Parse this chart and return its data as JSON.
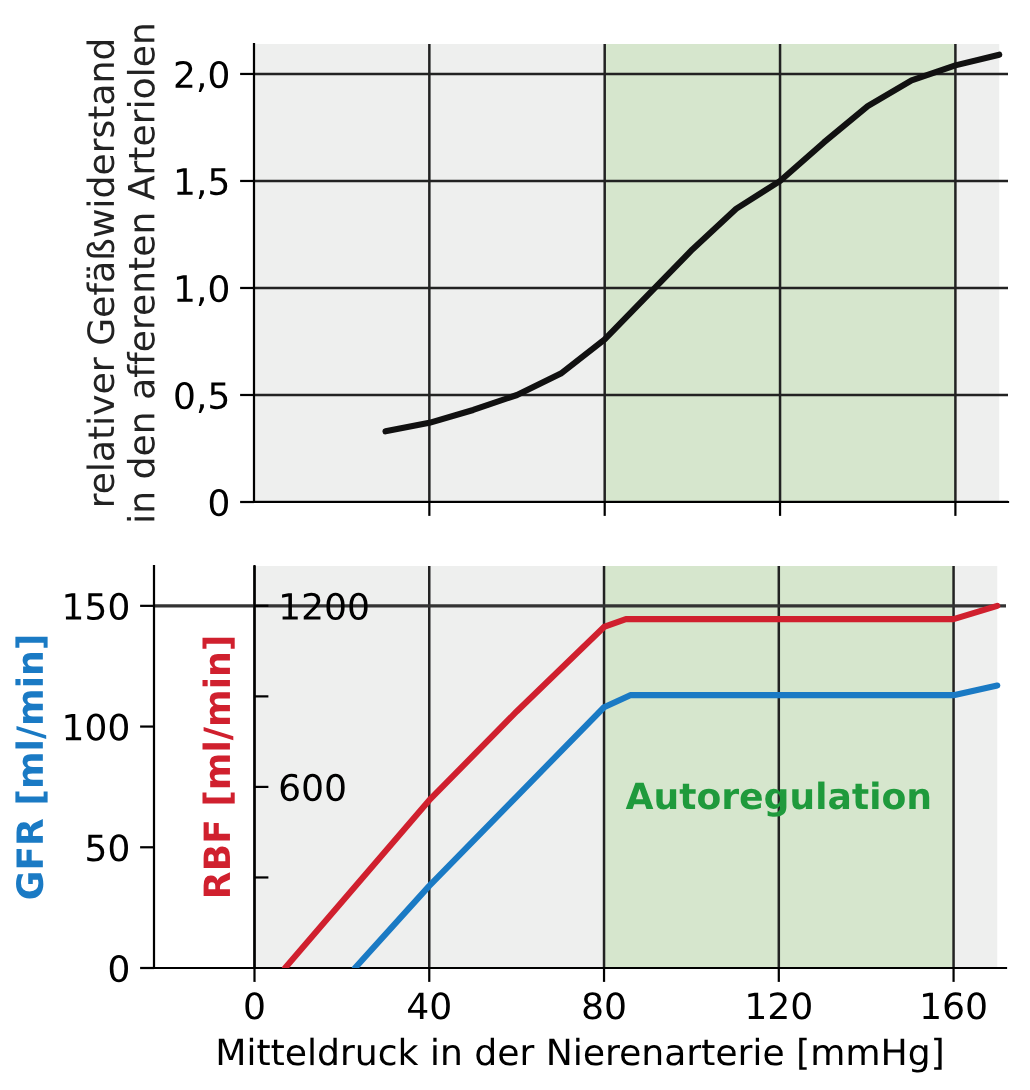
{
  "chart_data": [
    {
      "type": "line",
      "ylabel": "relativer Gefäßwiderstand\nin den afferenten Arteriolen",
      "xlim": [
        0,
        172
      ],
      "ylim": [
        0,
        2.14
      ],
      "xticks": [
        40,
        80,
        120,
        160
      ],
      "yticks": [
        0,
        {
          "value": 0.5,
          "label": "0,5"
        },
        {
          "value": 1.0,
          "label": "1,0"
        },
        {
          "value": 1.5,
          "label": "1,5"
        },
        {
          "value": 2.0,
          "label": "2,0"
        }
      ],
      "tick_labels": "y",
      "grid": true,
      "bands": [
        {
          "axis": "x",
          "from": 0,
          "to": 170,
          "color": "#eeefee"
        },
        {
          "axis": "x",
          "from": 80,
          "to": 160,
          "color": "#d6e6cd"
        }
      ],
      "series": [
        {
          "color": "#111111",
          "x": [
            30,
            40,
            50,
            60,
            70,
            80,
            90,
            100,
            110,
            120,
            130,
            140,
            150,
            160,
            170
          ],
          "values": [
            0.33,
            0.37,
            0.43,
            0.5,
            0.6,
            0.76,
            0.97,
            1.18,
            1.37,
            1.5,
            1.68,
            1.85,
            1.97,
            2.04,
            2.09
          ]
        }
      ]
    },
    {
      "type": "line",
      "xlabel": "Mitteldruck in der Nierenarterie [mmHg]",
      "ylabel": "GFR [ml/min]",
      "y2label": "RBF [ml/min]",
      "xlim": [
        -23,
        172
      ],
      "ylim": [
        0,
        166.5
      ],
      "y2lim": [
        0,
        1332
      ],
      "xticks": [
        0,
        40,
        80,
        120,
        160
      ],
      "yticks": [
        0,
        50,
        100,
        150
      ],
      "y2ticks": [
        {
          "value": 300,
          "label": null
        },
        600,
        {
          "value": 900,
          "label": null
        },
        1200
      ],
      "grid": "x",
      "ref_lines": [
        {
          "axis": "y",
          "value": 150,
          "color": "#333333"
        }
      ],
      "bands": [
        {
          "axis": "x",
          "from": 0,
          "to": 170,
          "color": "#eeefee"
        },
        {
          "axis": "x",
          "from": 80,
          "to": 160,
          "color": "#d6e6cd",
          "label": "Autoregulation"
        }
      ],
      "series": [
        {
          "color": "#1a7ac4",
          "axis": "y",
          "x": [
            23,
            40,
            60,
            80,
            86,
            120,
            160,
            170
          ],
          "values": [
            0,
            34,
            71,
            108,
            113,
            113,
            113,
            117
          ]
        },
        {
          "color": "#d0202e",
          "axis": "y2",
          "x": [
            7,
            40,
            60,
            80,
            85,
            120,
            160,
            170
          ],
          "values": [
            0,
            556,
            850,
            1130,
            1156,
            1156,
            1156,
            1200
          ]
        }
      ]
    }
  ]
}
